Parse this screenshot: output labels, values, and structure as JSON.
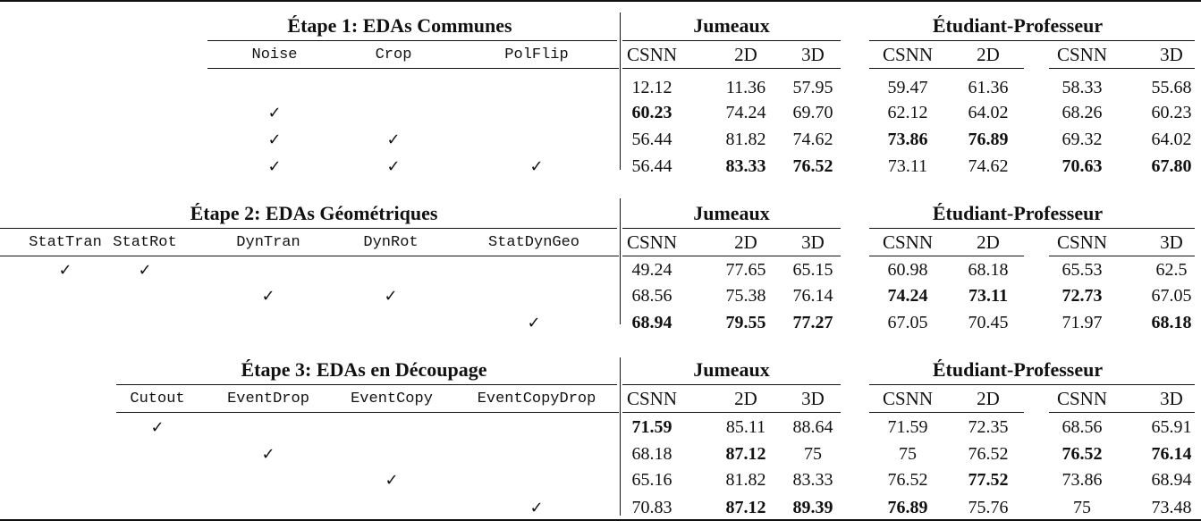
{
  "blocks": [
    {
      "title": "Étape 1: EDAs Communes",
      "aug_columns": [
        "Noise",
        "Crop",
        "PolFlip"
      ],
      "group_headers": [
        "Jumeaux",
        "Étudiant-Professeur"
      ],
      "metric_columns": [
        "CSNN",
        "2D",
        "3D",
        "CSNN",
        "2D",
        "CSNN",
        "3D"
      ],
      "rows": [
        {
          "checks": [
            false,
            false,
            false
          ],
          "values": [
            "12.12",
            "11.36",
            "57.95",
            "59.47",
            "61.36",
            "58.33",
            "55.68"
          ],
          "bold": [
            false,
            false,
            false,
            false,
            false,
            false,
            false
          ]
        },
        {
          "checks": [
            true,
            false,
            false
          ],
          "values": [
            "60.23",
            "74.24",
            "69.70",
            "62.12",
            "64.02",
            "68.26",
            "60.23"
          ],
          "bold": [
            true,
            false,
            false,
            false,
            false,
            false,
            false
          ]
        },
        {
          "checks": [
            true,
            true,
            false
          ],
          "values": [
            "56.44",
            "81.82",
            "74.62",
            "73.86",
            "76.89",
            "69.32",
            "64.02"
          ],
          "bold": [
            false,
            false,
            false,
            true,
            true,
            false,
            false
          ]
        },
        {
          "checks": [
            true,
            true,
            true
          ],
          "values": [
            "56.44",
            "83.33",
            "76.52",
            "73.11",
            "74.62",
            "70.63",
            "67.80"
          ],
          "bold": [
            false,
            true,
            true,
            false,
            false,
            true,
            true
          ]
        }
      ]
    },
    {
      "title": "Étape 2: EDAs Géométriques",
      "aug_columns": [
        "StatTran",
        "StatRot",
        "DynTran",
        "DynRot",
        "StatDynGeo"
      ],
      "group_headers": [
        "Jumeaux",
        "Étudiant-Professeur"
      ],
      "metric_columns": [
        "CSNN",
        "2D",
        "3D",
        "CSNN",
        "2D",
        "CSNN",
        "3D"
      ],
      "rows": [
        {
          "checks": [
            true,
            true,
            false,
            false,
            false
          ],
          "values": [
            "49.24",
            "77.65",
            "65.15",
            "60.98",
            "68.18",
            "65.53",
            "62.5"
          ],
          "bold": [
            false,
            false,
            false,
            false,
            false,
            false,
            false
          ]
        },
        {
          "checks": [
            false,
            false,
            true,
            true,
            false
          ],
          "values": [
            "68.56",
            "75.38",
            "76.14",
            "74.24",
            "73.11",
            "72.73",
            "67.05"
          ],
          "bold": [
            false,
            false,
            false,
            true,
            true,
            true,
            false
          ]
        },
        {
          "checks": [
            false,
            false,
            false,
            false,
            true
          ],
          "values": [
            "68.94",
            "79.55",
            "77.27",
            "67.05",
            "70.45",
            "71.97",
            "68.18"
          ],
          "bold": [
            true,
            true,
            true,
            false,
            false,
            false,
            true
          ]
        }
      ]
    },
    {
      "title": "Étape 3: EDAs en Découpage",
      "aug_columns": [
        "Cutout",
        "EventDrop",
        "EventCopy",
        "EventCopyDrop"
      ],
      "group_headers": [
        "Jumeaux",
        "Étudiant-Professeur"
      ],
      "metric_columns": [
        "CSNN",
        "2D",
        "3D",
        "CSNN",
        "2D",
        "CSNN",
        "3D"
      ],
      "rows": [
        {
          "checks": [
            true,
            false,
            false,
            false
          ],
          "values": [
            "71.59",
            "85.11",
            "88.64",
            "71.59",
            "72.35",
            "68.56",
            "65.91"
          ],
          "bold": [
            true,
            false,
            false,
            false,
            false,
            false,
            false
          ]
        },
        {
          "checks": [
            false,
            true,
            false,
            false
          ],
          "values": [
            "68.18",
            "87.12",
            "75",
            "75",
            "76.52",
            "76.52",
            "76.14"
          ],
          "bold": [
            false,
            true,
            false,
            false,
            false,
            true,
            true
          ]
        },
        {
          "checks": [
            false,
            false,
            true,
            false
          ],
          "values": [
            "65.16",
            "81.82",
            "83.33",
            "76.52",
            "77.52",
            "73.86",
            "68.94"
          ],
          "bold": [
            false,
            false,
            false,
            false,
            true,
            false,
            false
          ]
        },
        {
          "checks": [
            false,
            false,
            false,
            true
          ],
          "values": [
            "70.83",
            "87.12",
            "89.39",
            "76.89",
            "75.76",
            "75",
            "73.48"
          ],
          "bold": [
            false,
            true,
            true,
            true,
            false,
            false,
            false
          ]
        }
      ]
    }
  ],
  "check_glyph": "✓"
}
